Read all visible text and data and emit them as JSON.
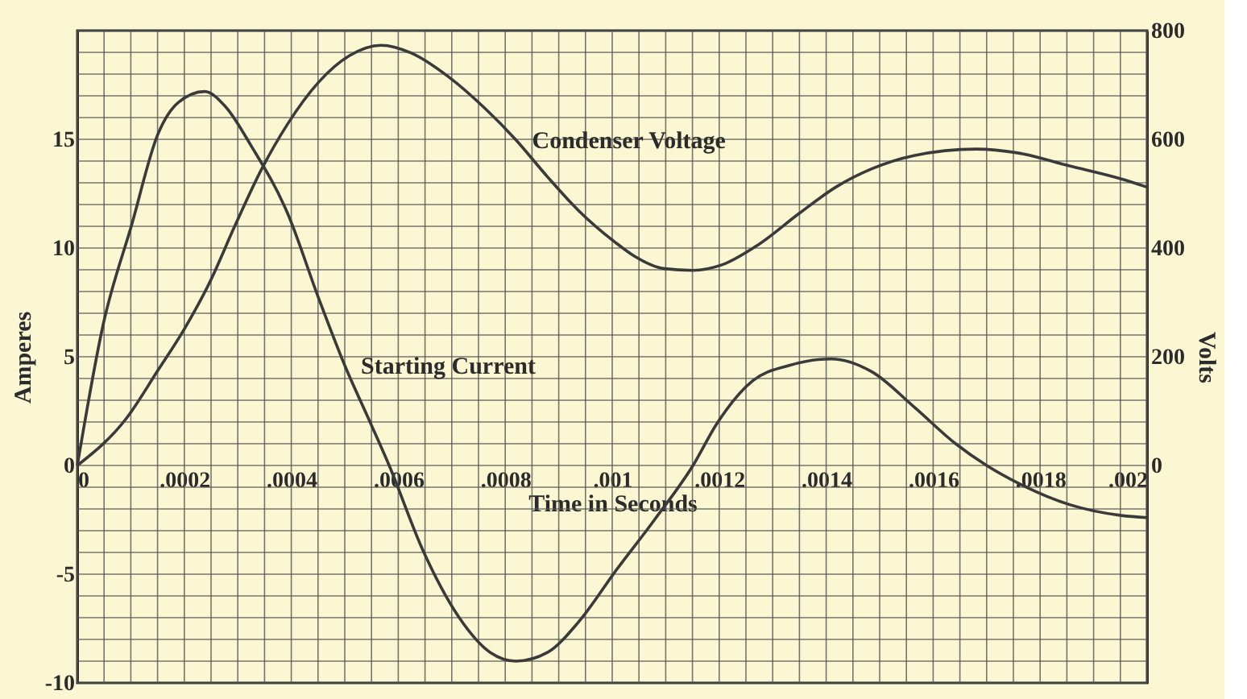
{
  "chart_data": {
    "type": "line",
    "xlabel": "Time in Seconds",
    "ylabel": "Amperes",
    "y2label": "Volts",
    "xlim": [
      0,
      0.002
    ],
    "ylim": [
      -10,
      20
    ],
    "y2lim": [
      -400,
      800
    ],
    "xticks": [
      {
        "value": 0,
        "label": "0"
      },
      {
        "value": 0.0002,
        "label": ".0002"
      },
      {
        "value": 0.0004,
        "label": ".0004"
      },
      {
        "value": 0.0006,
        "label": ".0006"
      },
      {
        "value": 0.0008,
        "label": ".0008"
      },
      {
        "value": 0.001,
        "label": ".001"
      },
      {
        "value": 0.0012,
        "label": ".0012"
      },
      {
        "value": 0.0014,
        "label": ".0014"
      },
      {
        "value": 0.0016,
        "label": ".0016"
      },
      {
        "value": 0.0018,
        "label": ".0018"
      },
      {
        "value": 0.002,
        "label": ".002"
      }
    ],
    "yticks": [
      -10,
      -5,
      0,
      5,
      10,
      15
    ],
    "y2ticks": [
      0,
      200,
      400,
      600,
      800
    ],
    "grid": true,
    "marker": "none",
    "line_style": "solid",
    "series": [
      {
        "name": "Starting Current",
        "color": "#3a3a3a",
        "x": [
          0,
          4.85e-05,
          0.000102,
          0.00015,
          0.000189,
          0.000238,
          0.000277,
          0.000325,
          0.000393,
          0.000451,
          0.0005,
          0.000549,
          0.000583,
          0.000646,
          0.000714,
          0.000772,
          0.00082,
          0.000879,
          0.000937,
          0.001005,
          0.001079,
          0.001151,
          0.001195,
          0.001263,
          0.001331,
          0.001409,
          0.001486,
          0.001564,
          0.001642,
          0.0017,
          0.001758,
          0.001855,
          0.001952,
          0.002
        ],
        "values": [
          0,
          6.5,
          11.1,
          15.2,
          16.7,
          17.2,
          16.5,
          14.7,
          11.6,
          7.7,
          4.6,
          1.9,
          0,
          -3.9,
          -7.0,
          -8.6,
          -9.0,
          -8.6,
          -7.2,
          -4.9,
          -2.5,
          0,
          1.9,
          3.9,
          4.6,
          4.9,
          4.3,
          2.7,
          1.0,
          0,
          -0.8,
          -1.8,
          -2.3,
          -2.4
        ]
      },
      {
        "name": "Condenser Voltage",
        "color": "#3a3a3a",
        "axis": "y2",
        "x": [
          0,
          9.2e-05,
          0.00015,
          0.0002,
          0.000248,
          0.000296,
          0.000345,
          0.000393,
          0.000451,
          0.000509,
          0.000568,
          0.000626,
          0.000694,
          0.000762,
          0.00082,
          0.000879,
          0.000937,
          0.001005,
          0.00104,
          0.001098,
          0.001151,
          0.001205,
          0.001273,
          0.00135,
          0.001418,
          0.001486,
          0.001564,
          0.00168,
          0.001758,
          0.001855,
          0.001952,
          0.002
        ],
        "values": [
          0,
          87,
          174,
          251,
          338,
          444,
          546,
          628,
          705,
          754,
          773,
          758,
          715,
          657,
          599,
          531,
          469,
          411,
          386,
          362,
          359,
          369,
          406,
          464,
          512,
          546,
          570,
          582,
          575,
          551,
          527,
          512
        ]
      }
    ]
  }
}
